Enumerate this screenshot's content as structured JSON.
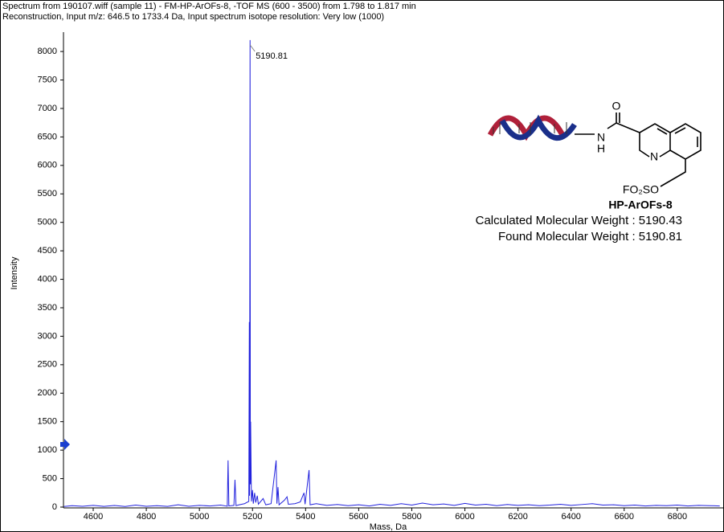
{
  "header": [
    "Spectrum from 190107.wiff (sample 11) - FM-HP-ArOFs-8, -TOF MS (600 - 3500) from 1.798 to 1.817 min",
    "Reconstruction,  Input m/z: 646.5 to 1733.4 Da, Input spectrum isotope resolution: Very low (1000)"
  ],
  "chart_data": {
    "type": "line",
    "xlabel": "Mass, Da",
    "ylabel": "Intensity",
    "peak_label": "5190.81",
    "threshold": 1100,
    "xlim": [
      4488,
      6976
    ],
    "ylim": [
      0,
      8340
    ],
    "xticks": [
      4600,
      4800,
      5000,
      5200,
      5400,
      5600,
      5800,
      6000,
      6200,
      6400,
      6600,
      6800
    ],
    "yticks": [
      0,
      500,
      1000,
      1500,
      2000,
      2500,
      3000,
      3500,
      4000,
      4500,
      5000,
      5500,
      6000,
      6500,
      7000,
      7500,
      8000
    ],
    "series": [
      {
        "name": null,
        "color": "#2222dd",
        "x": [
          4490,
          4520,
          4560,
          4600,
          4640,
          4680,
          4720,
          4760,
          4800,
          4840,
          4880,
          4920,
          4960,
          5000,
          5040,
          5080,
          5105,
          5108,
          5111,
          5130,
          5134,
          5138,
          5150,
          5170,
          5186,
          5188,
          5189,
          5190.81,
          5192,
          5193,
          5196,
          5200,
          5203,
          5208,
          5212,
          5218,
          5222,
          5240,
          5250,
          5270,
          5289,
          5292,
          5296,
          5300,
          5320,
          5330,
          5335,
          5360,
          5380,
          5394,
          5398,
          5413,
          5417,
          5440,
          5480,
          5520,
          5560,
          5600,
          5640,
          5680,
          5720,
          5760,
          5800,
          5840,
          5880,
          5920,
          5960,
          6000,
          6040,
          6080,
          6120,
          6160,
          6200,
          6240,
          6280,
          6320,
          6360,
          6400,
          6440,
          6480,
          6520,
          6560,
          6600,
          6640,
          6680,
          6720,
          6760,
          6800,
          6840,
          6880,
          6920,
          6960
        ],
        "values": [
          10,
          25,
          15,
          30,
          12,
          28,
          10,
          35,
          15,
          25,
          12,
          40,
          15,
          30,
          20,
          35,
          15,
          820,
          20,
          30,
          480,
          25,
          40,
          60,
          100,
          3250,
          200,
          8200,
          400,
          1500,
          100,
          300,
          60,
          250,
          80,
          200,
          50,
          150,
          40,
          60,
          820,
          60,
          350,
          40,
          120,
          180,
          50,
          60,
          90,
          250,
          50,
          650,
          40,
          60,
          30,
          45,
          25,
          40,
          20,
          50,
          30,
          60,
          35,
          70,
          40,
          55,
          30,
          65,
          35,
          50,
          25,
          45,
          30,
          40,
          25,
          35,
          50,
          30,
          45,
          60,
          35,
          40,
          25,
          35,
          20,
          30,
          25,
          35,
          20,
          30,
          25,
          20
        ]
      }
    ]
  },
  "structure": {
    "atoms": [
      "O",
      "N",
      "H",
      "N",
      "FO₂SO"
    ],
    "name": "HP-ArOFs-8",
    "lines": [
      "Calculated Molecular Weight : 5190.43",
      "Found Molecular Weight : 5190.81"
    ]
  }
}
